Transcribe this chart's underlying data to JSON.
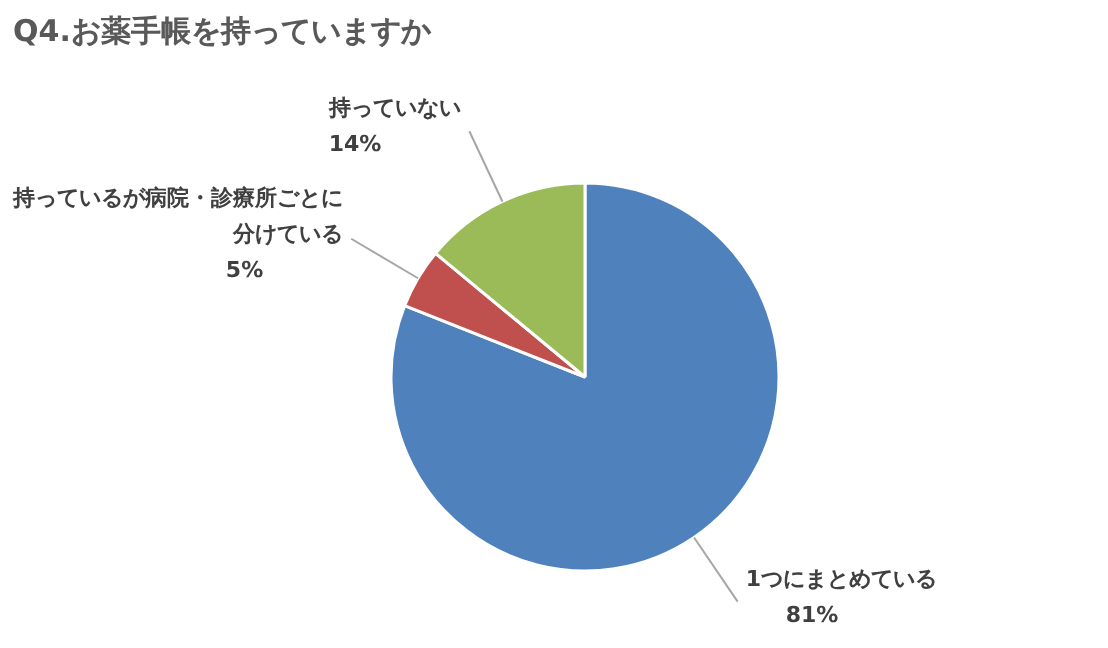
{
  "chart_data": {
    "type": "pie",
    "title": "Q4.お薬手帳を持っていますか",
    "categories": [
      "1つにまとめている",
      "持っているが病院・診療所ごとに分けている",
      "持っていない"
    ],
    "values": [
      81,
      5,
      14
    ],
    "colors": [
      "#4f81bd",
      "#c0504d",
      "#9bbb59"
    ],
    "value_labels": [
      "81%",
      "5%",
      "14%"
    ]
  }
}
